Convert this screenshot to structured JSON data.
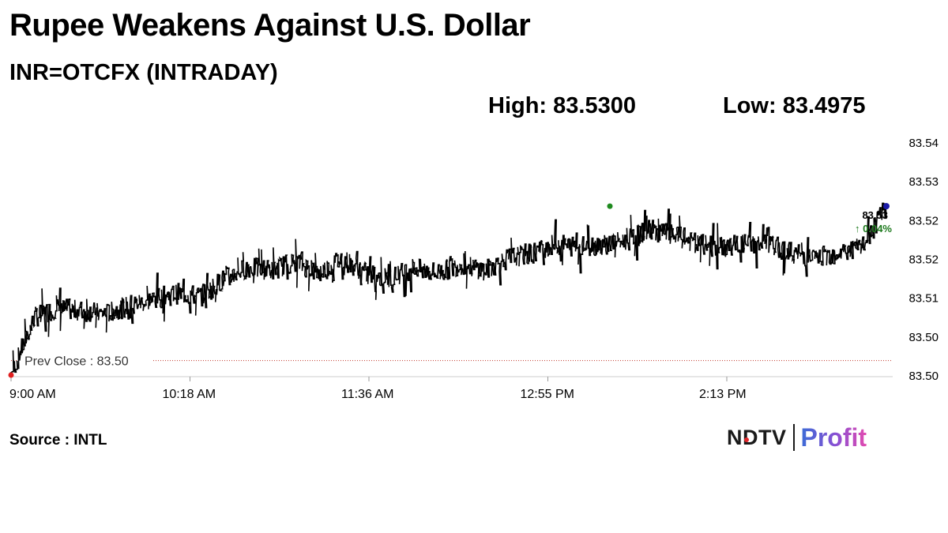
{
  "header": {
    "title": "Rupee Weakens Against U.S. Dollar",
    "subtitle": "INR=OTCFX (INTRADAY)",
    "high_label": "High: ",
    "high_value": "83.5300",
    "low_label": "Low: ",
    "low_value": "83.4975"
  },
  "footer": {
    "source": "Source : INTL",
    "logo_left": "NDTV",
    "logo_right": "Profit"
  },
  "colors": {
    "line": "#000000",
    "prev_close_line": "#c0392b",
    "start_marker": "#e02020",
    "high_marker": "#1e8a1e",
    "end_marker": "#1a1aa8",
    "change_up": "#1e7a1e",
    "axis": "#cccccc"
  },
  "chart_data": {
    "type": "line",
    "series": [
      {
        "x": [
          "9:00 AM",
          "9:10 AM",
          "9:20 AM",
          "9:30 AM",
          "9:40 AM",
          "9:50 AM",
          "10:00 AM",
          "10:10 AM",
          "10:18 AM",
          "10:30 AM",
          "10:40 AM",
          "10:50 AM",
          "11:00 AM",
          "11:10 AM",
          "11:20 AM",
          "11:30 AM",
          "11:36 AM",
          "11:45 AM",
          "11:55 AM",
          "12:05 PM",
          "12:15 PM",
          "12:25 PM",
          "12:35 PM",
          "12:45 PM",
          "12:55 PM",
          "1:05 PM",
          "1:15 PM",
          "1:25 PM",
          "1:35 PM",
          "1:45 PM",
          "1:55 PM",
          "2:05 PM",
          "2:13 PM",
          "2:23 PM",
          "2:33 PM",
          "2:43 PM",
          "2:53 PM",
          "3:00 PM"
        ],
        "values": [
          83.4975,
          83.5075,
          83.509,
          83.5085,
          83.508,
          83.5095,
          83.5105,
          83.5115,
          83.511,
          83.514,
          83.516,
          83.5155,
          83.517,
          83.515,
          83.5175,
          83.515,
          83.514,
          83.516,
          83.515,
          83.5165,
          83.5155,
          83.5175,
          83.5185,
          83.52,
          83.5195,
          83.52,
          83.5205,
          83.5225,
          83.5215,
          83.52,
          83.5195,
          83.52,
          83.52,
          83.5185,
          83.5175,
          83.5185,
          83.5195,
          83.5265
        ]
      }
    ],
    "x_ticks": [
      "9:00 AM",
      "10:18 AM",
      "11:36 AM",
      "12:55 PM",
      "2:13 PM"
    ],
    "y_ticks": [
      "83.54",
      "83.53",
      "83.52",
      "83.52",
      "83.51",
      "83.50",
      "83.50"
    ],
    "ylim": [
      83.4975,
      83.5375
    ],
    "prev_close": 83.5,
    "prev_close_label": "Prev Close : 83.50",
    "last_value_label": "83.53",
    "change_label": "↑ 0.04%",
    "grid": false
  }
}
